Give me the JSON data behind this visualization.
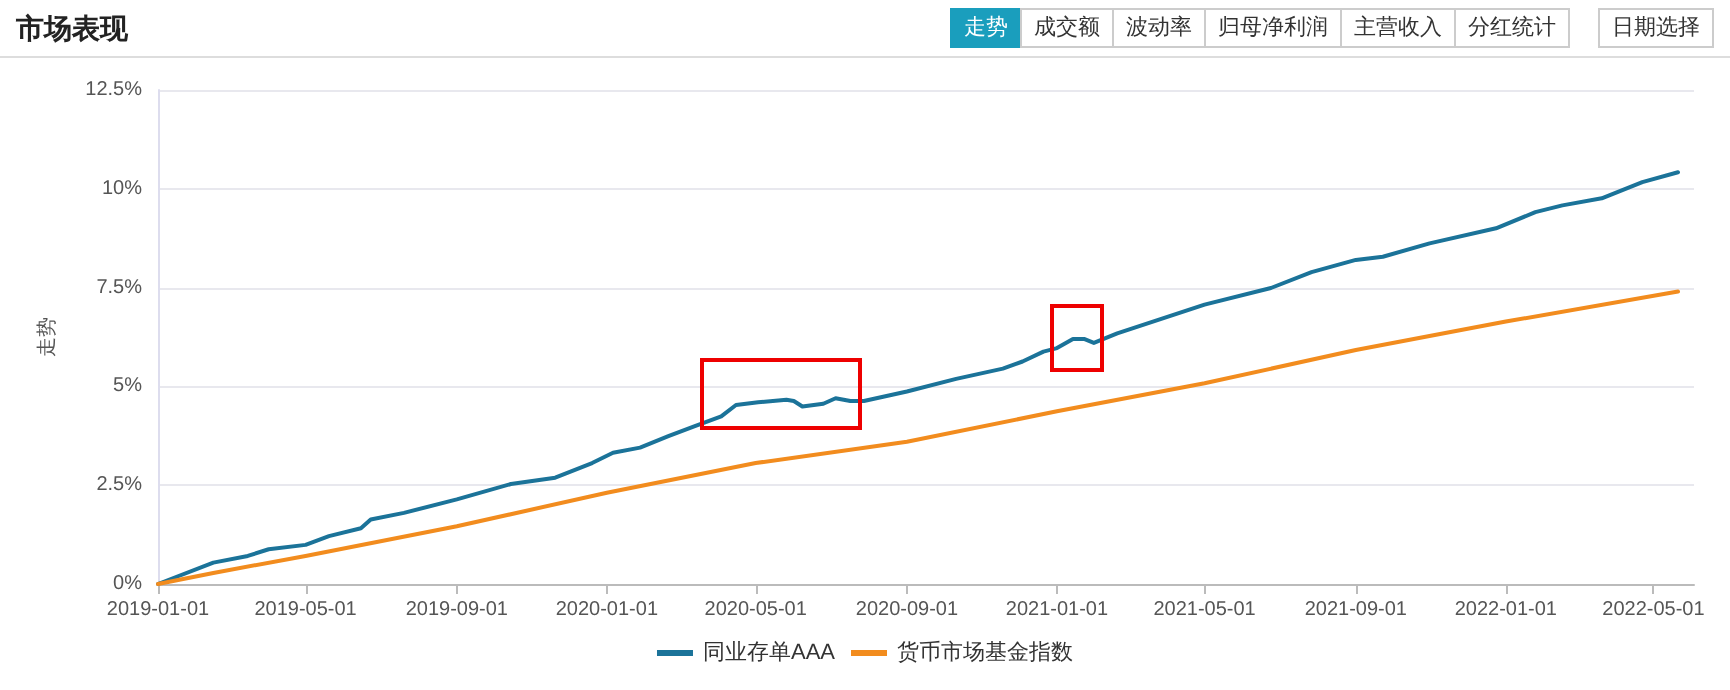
{
  "chart_data": {
    "type": "line",
    "title": "市场表现",
    "ylabel": "走势",
    "annotations": [
      "走势",
      "成交额",
      "波动率",
      "归母净利润",
      "主营收入",
      "分红统计",
      "日期选择"
    ],
    "xlim": [
      "2019-01-01",
      "2022-06-03"
    ],
    "xticks": [
      "2019-01-01",
      "2019-05-01",
      "2019-09-01",
      "2020-01-01",
      "2020-05-01",
      "2020-09-01",
      "2021-01-01",
      "2021-05-01",
      "2021-09-01",
      "2022-01-01",
      "2022-05-01"
    ],
    "ylim": [
      0,
      12.5
    ],
    "yticks": [
      {
        "value": 0,
        "label": "0%"
      },
      {
        "value": 2.5,
        "label": "2.5%"
      },
      {
        "value": 5,
        "label": "5%"
      },
      {
        "value": 7.5,
        "label": "7.5%"
      },
      {
        "value": 10,
        "label": "10%"
      },
      {
        "value": 12.5,
        "label": "12.5%"
      }
    ],
    "grid": "y",
    "legend": "bottom",
    "marker": "none",
    "line_style": "solid",
    "series": [
      {
        "name": "同业存单AAA",
        "color": "#1b7399",
        "x": [
          "2019-01-01",
          "2019-02-15",
          "2019-03-15",
          "2019-04-01",
          "2019-05-01",
          "2019-05-20",
          "2019-06-15",
          "2019-06-23",
          "2019-07-20",
          "2019-09-01",
          "2019-10-15",
          "2019-11-20",
          "2019-12-20",
          "2020-01-06",
          "2020-01-28",
          "2020-02-20",
          "2020-03-12",
          "2020-04-03",
          "2020-04-15",
          "2020-05-03",
          "2020-05-26",
          "2020-06-01",
          "2020-06-08",
          "2020-06-25",
          "2020-07-05",
          "2020-07-17",
          "2020-07-28",
          "2020-09-01",
          "2020-10-11",
          "2020-11-18",
          "2020-12-04",
          "2020-12-21",
          "2021-01-01",
          "2021-01-14",
          "2021-01-23",
          "2021-01-31",
          "2021-02-19",
          "2021-05-01",
          "2021-06-24",
          "2021-07-27",
          "2021-09-01",
          "2021-09-23",
          "2021-10-31",
          "2021-12-24",
          "2022-01-25",
          "2022-02-16",
          "2022-03-20",
          "2022-04-22",
          "2022-05-21"
        ],
        "values": [
          0,
          0.54,
          0.71,
          0.88,
          0.99,
          1.21,
          1.41,
          1.63,
          1.8,
          2.14,
          2.53,
          2.69,
          3.06,
          3.32,
          3.45,
          3.74,
          3.99,
          4.24,
          4.53,
          4.6,
          4.66,
          4.63,
          4.49,
          4.56,
          4.7,
          4.63,
          4.63,
          4.87,
          5.19,
          5.45,
          5.63,
          5.88,
          5.97,
          6.2,
          6.2,
          6.1,
          6.34,
          7.07,
          7.49,
          7.89,
          8.2,
          8.28,
          8.62,
          9.0,
          9.41,
          9.58,
          9.76,
          10.17,
          10.42
        ]
      },
      {
        "name": "货币市场基金指数",
        "color": "#f28c1e",
        "x": [
          "2019-01-01",
          "2019-02-15",
          "2019-05-01",
          "2019-09-01",
          "2020-01-01",
          "2020-05-01",
          "2020-09-01",
          "2021-01-01",
          "2021-05-01",
          "2021-09-01",
          "2022-01-01",
          "2022-05-21"
        ],
        "values": [
          0,
          0.28,
          0.71,
          1.46,
          2.31,
          3.06,
          3.6,
          4.37,
          5.08,
          5.92,
          6.64,
          7.4
        ]
      }
    ]
  }
}
